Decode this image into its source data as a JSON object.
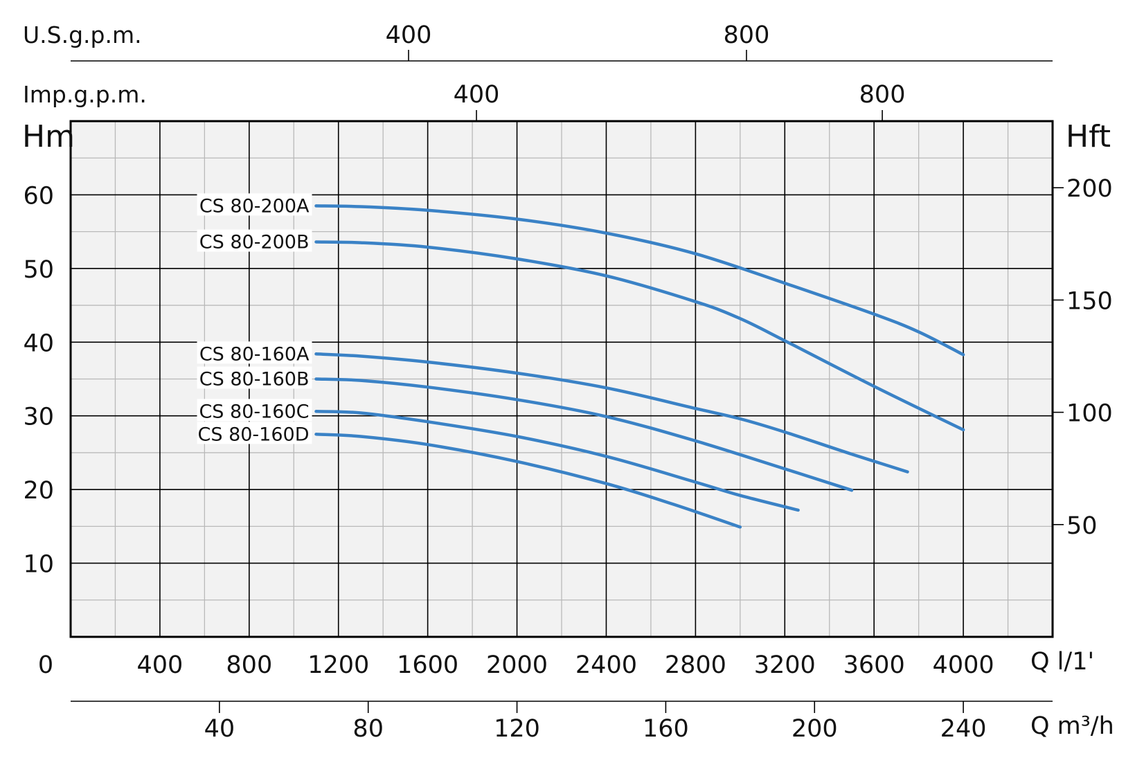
{
  "chart_data": {
    "type": "line",
    "colors": {
      "curve": "#3a82c6",
      "plot_background": "#f2f2f2",
      "grid": "#000000"
    },
    "x": {
      "unit_label": "Q l/1'",
      "range": [
        0,
        4400
      ],
      "ticks": [
        0,
        400,
        800,
        1200,
        1600,
        2000,
        2400,
        2800,
        3200,
        3600,
        4000
      ],
      "tick_labels": [
        "0",
        "400",
        "800",
        "1200",
        "1600",
        "2000",
        "2400",
        "2800",
        "3200",
        "3600",
        "4000"
      ]
    },
    "x_m3h": {
      "unit_label": "Q m³/h",
      "ticks": [
        40,
        80,
        120,
        160,
        200,
        240
      ],
      "tick_labels": [
        "40",
        "80",
        "120",
        "160",
        "200",
        "240"
      ]
    },
    "x_usgpm": {
      "unit_label": "U.S.g.p.m.",
      "ticks": [
        400,
        800
      ],
      "tick_labels": [
        "400",
        "800"
      ]
    },
    "x_impgpm": {
      "unit_label": "Imp.g.p.m.",
      "ticks": [
        400,
        800
      ],
      "tick_labels": [
        "400",
        "800"
      ]
    },
    "y": {
      "unit_label": "Hm",
      "range": [
        0,
        70
      ],
      "ticks": [
        10,
        20,
        30,
        40,
        50,
        60
      ],
      "tick_labels": [
        "10",
        "20",
        "30",
        "40",
        "50",
        "60"
      ]
    },
    "y_ft": {
      "unit_label": "Hft",
      "ticks": [
        50,
        100,
        150,
        200
      ],
      "tick_labels": [
        "50",
        "100",
        "150",
        "200"
      ]
    },
    "grid": true,
    "series": [
      {
        "name": "CS 80-200A",
        "points": [
          [
            1100,
            58.5
          ],
          [
            1300,
            58.4
          ],
          [
            1600,
            57.9
          ],
          [
            2000,
            56.7
          ],
          [
            2400,
            54.8
          ],
          [
            2800,
            52.0
          ],
          [
            3200,
            48.0
          ],
          [
            3600,
            43.8
          ],
          [
            3800,
            41.4
          ],
          [
            4000,
            38.3
          ]
        ]
      },
      {
        "name": "CS 80-200B",
        "points": [
          [
            1100,
            53.6
          ],
          [
            1300,
            53.5
          ],
          [
            1600,
            52.9
          ],
          [
            2000,
            51.3
          ],
          [
            2400,
            49.0
          ],
          [
            2800,
            45.5
          ],
          [
            3000,
            43.2
          ],
          [
            3200,
            40.2
          ],
          [
            3600,
            34.0
          ],
          [
            4000,
            28.1
          ]
        ]
      },
      {
        "name": "CS 80-160A",
        "points": [
          [
            1100,
            38.4
          ],
          [
            1300,
            38.1
          ],
          [
            1600,
            37.3
          ],
          [
            2000,
            35.8
          ],
          [
            2400,
            33.8
          ],
          [
            2800,
            31.0
          ],
          [
            3000,
            29.6
          ],
          [
            3200,
            27.8
          ],
          [
            3500,
            24.8
          ],
          [
            3750,
            22.4
          ]
        ]
      },
      {
        "name": "CS 80-160B",
        "points": [
          [
            1100,
            35.0
          ],
          [
            1300,
            34.8
          ],
          [
            1600,
            33.9
          ],
          [
            2000,
            32.2
          ],
          [
            2400,
            29.9
          ],
          [
            2800,
            26.6
          ],
          [
            3200,
            22.8
          ],
          [
            3500,
            19.9
          ]
        ]
      },
      {
        "name": "CS 80-160C",
        "points": [
          [
            1100,
            30.6
          ],
          [
            1300,
            30.4
          ],
          [
            1600,
            29.2
          ],
          [
            2000,
            27.2
          ],
          [
            2400,
            24.5
          ],
          [
            2800,
            21.0
          ],
          [
            3000,
            19.2
          ],
          [
            3260,
            17.2
          ]
        ]
      },
      {
        "name": "CS 80-160D",
        "points": [
          [
            1100,
            27.5
          ],
          [
            1300,
            27.2
          ],
          [
            1600,
            26.1
          ],
          [
            2000,
            23.8
          ],
          [
            2400,
            20.8
          ],
          [
            2700,
            18.0
          ],
          [
            3000,
            14.9
          ]
        ]
      }
    ]
  }
}
